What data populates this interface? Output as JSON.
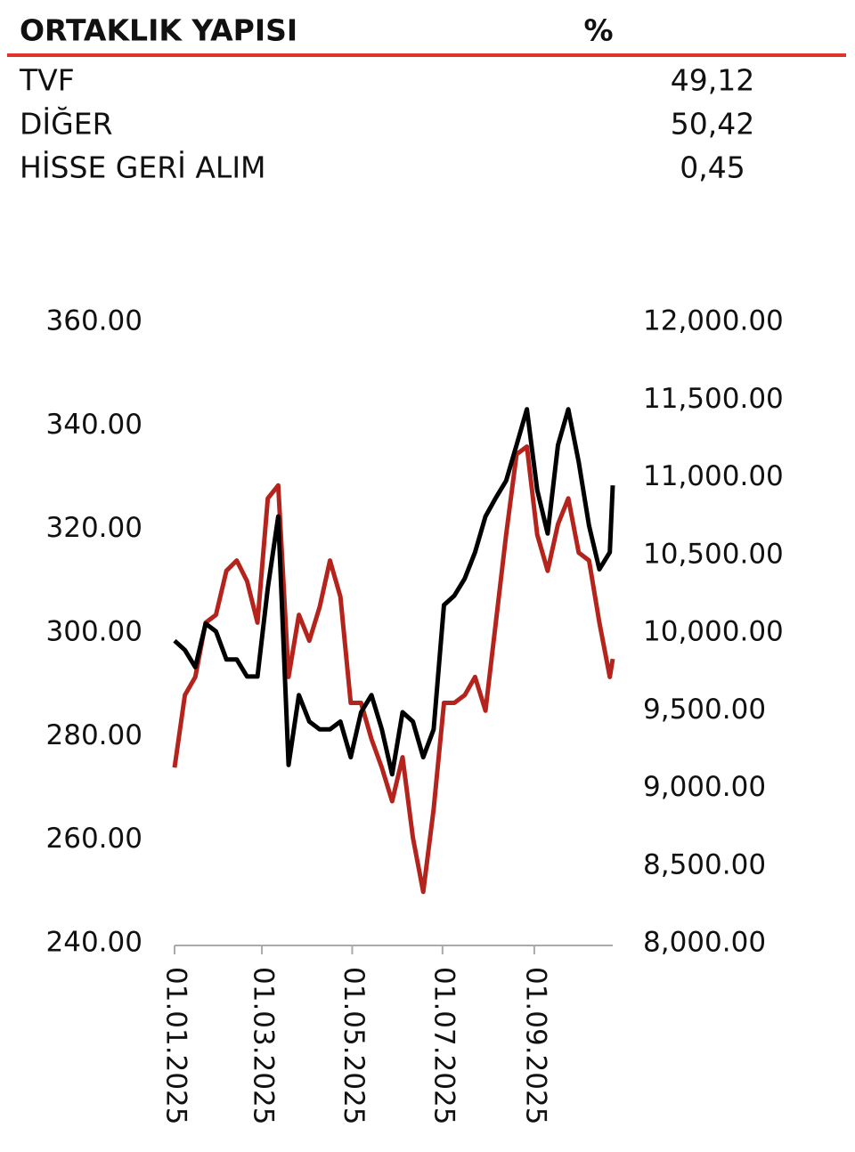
{
  "table": {
    "header": [
      "ORTAKLIK YAPISI",
      "%"
    ],
    "rows": [
      [
        "TVF",
        "49,12"
      ],
      [
        "DİĞER",
        "50,42"
      ],
      [
        "HİSSE GERİ ALIM",
        "0,45"
      ]
    ]
  },
  "chart_data": {
    "type": "line",
    "x": [
      "01.01.2025",
      "08.01.2025",
      "15.01.2025",
      "22.01.2025",
      "29.01.2025",
      "05.02.2025",
      "12.02.2025",
      "19.02.2025",
      "26.02.2025",
      "05.03.2025",
      "12.03.2025",
      "19.03.2025",
      "26.03.2025",
      "02.04.2025",
      "09.04.2025",
      "16.04.2025",
      "23.04.2025",
      "30.04.2025",
      "07.05.2025",
      "14.05.2025",
      "21.05.2025",
      "28.05.2025",
      "04.06.2025",
      "11.06.2025",
      "18.06.2025",
      "25.06.2025",
      "02.07.2025",
      "09.07.2025",
      "16.07.2025",
      "23.07.2025",
      "30.07.2025",
      "06.08.2025",
      "13.08.2025",
      "20.08.2025",
      "27.08.2025",
      "03.09.2025",
      "10.09.2025",
      "17.09.2025",
      "24.09.2025",
      "01.10.2025",
      "08.10.2025",
      "15.10.2025",
      "22.10.2025",
      "24.10.2025"
    ],
    "series": [
      {
        "color": "#b5241c",
        "axis": "y",
        "values": [
          274,
          288,
          291.5,
          302,
          303.5,
          312,
          314,
          310,
          302,
          326,
          328.5,
          291.5,
          303.5,
          298.5,
          305,
          314,
          307,
          286.5,
          286.5,
          279.5,
          274,
          267.5,
          276,
          260.5,
          250,
          266,
          286.5,
          286.5,
          288,
          291.5,
          285,
          302,
          319,
          334.5,
          336,
          319,
          312,
          321,
          326,
          315.5,
          314,
          302,
          291.5,
          295
        ]
      },
      {
        "color": "#000000",
        "axis": "y2",
        "values": [
          9950,
          9890,
          9780,
          10060,
          10010,
          9830,
          9830,
          9720,
          9720,
          10290,
          10750,
          9150,
          9600,
          9430,
          9380,
          9380,
          9430,
          9200,
          9490,
          9600,
          9380,
          9090,
          9490,
          9430,
          9200,
          9380,
          10180,
          10240,
          10350,
          10520,
          10750,
          10870,
          10980,
          11210,
          11440,
          10920,
          10640,
          11210,
          11440,
          11100,
          10690,
          10410,
          10520,
          10950
        ]
      }
    ],
    "xlim": [
      "01.01.2025",
      "24.10.2025"
    ],
    "xticks": [
      "01.01.2025",
      "01.03.2025",
      "01.05.2025",
      "01.07.2025",
      "01.09.2025"
    ],
    "ylim": [
      240,
      360
    ],
    "yticks": [
      {
        "value": 240,
        "label": "240.00"
      },
      {
        "value": 260,
        "label": "260.00"
      },
      {
        "value": 280,
        "label": "280.00"
      },
      {
        "value": 300,
        "label": "300.00"
      },
      {
        "value": 320,
        "label": "320.00"
      },
      {
        "value": 340,
        "label": "340.00"
      },
      {
        "value": 360,
        "label": "360.00"
      }
    ],
    "y2lim": [
      8000,
      12000
    ],
    "y2ticks": [
      {
        "value": 8000,
        "label": "8,000.00"
      },
      {
        "value": 8500,
        "label": "8,500.00"
      },
      {
        "value": 9000,
        "label": "9,000.00"
      },
      {
        "value": 9500,
        "label": "9,500.00"
      },
      {
        "value": 10000,
        "label": "10,000.00"
      },
      {
        "value": 10500,
        "label": "10,500.00"
      },
      {
        "value": 11000,
        "label": "11,000.00"
      },
      {
        "value": 11500,
        "label": "11,500.00"
      },
      {
        "value": 12000,
        "label": "12,000.00"
      }
    ],
    "grid": false
  }
}
